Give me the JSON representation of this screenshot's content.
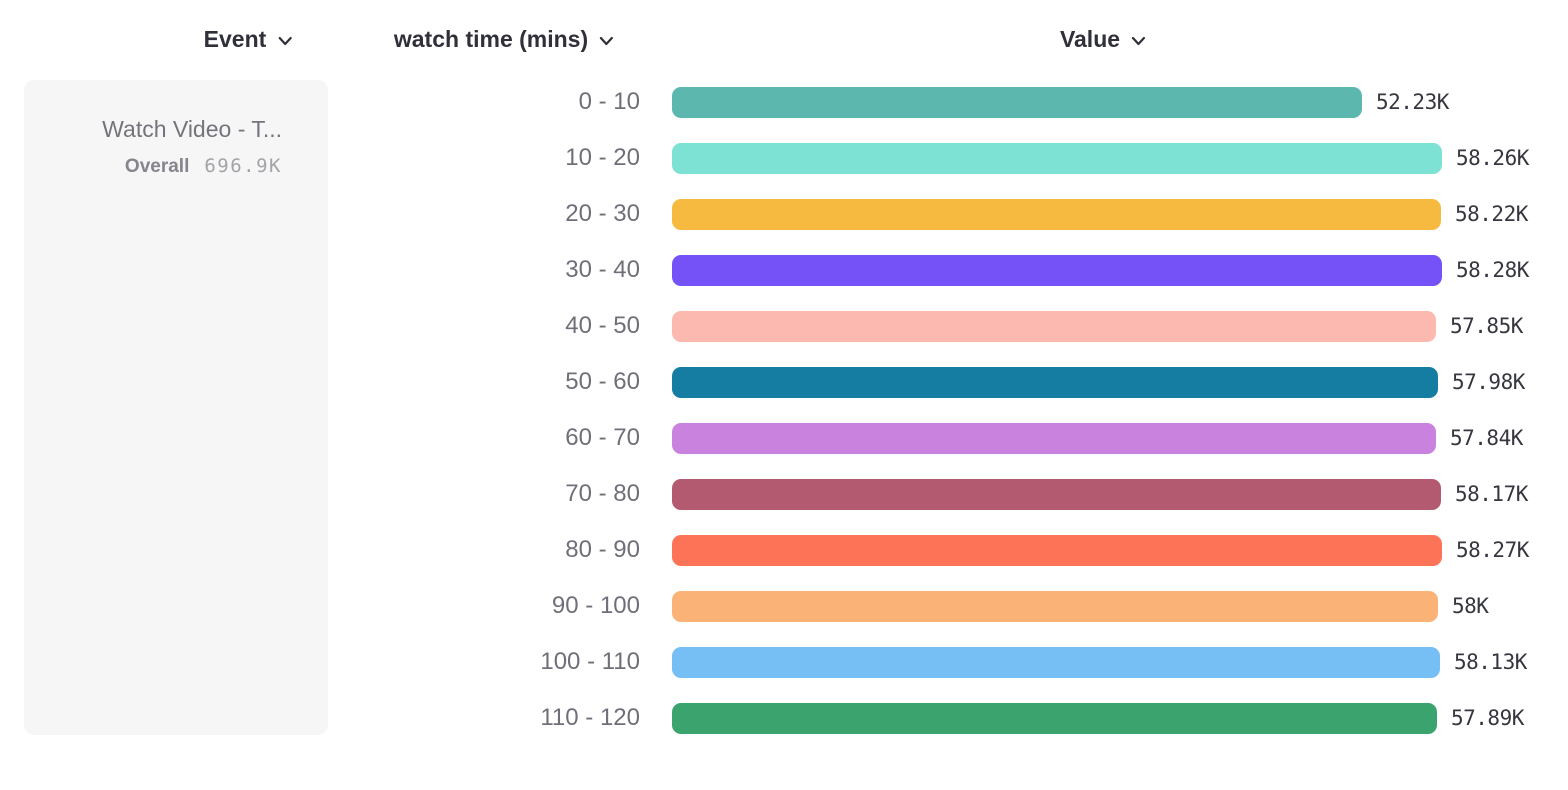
{
  "columns": {
    "event": {
      "label": "Event",
      "icon": "chevron-down"
    },
    "breakdown": {
      "label": "watch time (mins)",
      "icon": "chevron-down"
    },
    "value": {
      "label": "Value",
      "icon": "chevron-down"
    }
  },
  "event_card": {
    "title": "Watch Video - T...",
    "overall_label": "Overall",
    "overall_value": "696.9K"
  },
  "chart_data": {
    "type": "bar",
    "orientation": "horizontal",
    "categories": [
      "0 - 10",
      "10 - 20",
      "20 - 30",
      "30 - 40",
      "40 - 50",
      "50 - 60",
      "60 - 70",
      "70 - 80",
      "80 - 90",
      "90 - 100",
      "100 - 110",
      "110 - 120"
    ],
    "values": [
      52.23,
      58.26,
      58.22,
      58.28,
      57.85,
      57.98,
      57.84,
      58.17,
      58.27,
      58.0,
      58.13,
      57.89
    ],
    "value_labels": [
      "52.23K",
      "58.26K",
      "58.22K",
      "58.28K",
      "57.85K",
      "57.98K",
      "57.84K",
      "58.17K",
      "58.27K",
      "58K",
      "58.13K",
      "57.89K"
    ],
    "value_unit": "K",
    "xlabel": "Value",
    "ylabel": "watch time (mins)",
    "xlim": [
      0,
      58.28
    ],
    "grid": false,
    "legend": false,
    "bar_colors": [
      "#5cb7ae",
      "#7de2d3",
      "#f6ba40",
      "#7552f8",
      "#fcb9b0",
      "#147da1",
      "#c983df",
      "#b35a70",
      "#fd7357",
      "#fbb277",
      "#76bff4",
      "#3ba46e"
    ],
    "text_colors": {
      "header": "#2f3039",
      "category_label": "#6f6f79",
      "value_label": "#35363f"
    }
  }
}
